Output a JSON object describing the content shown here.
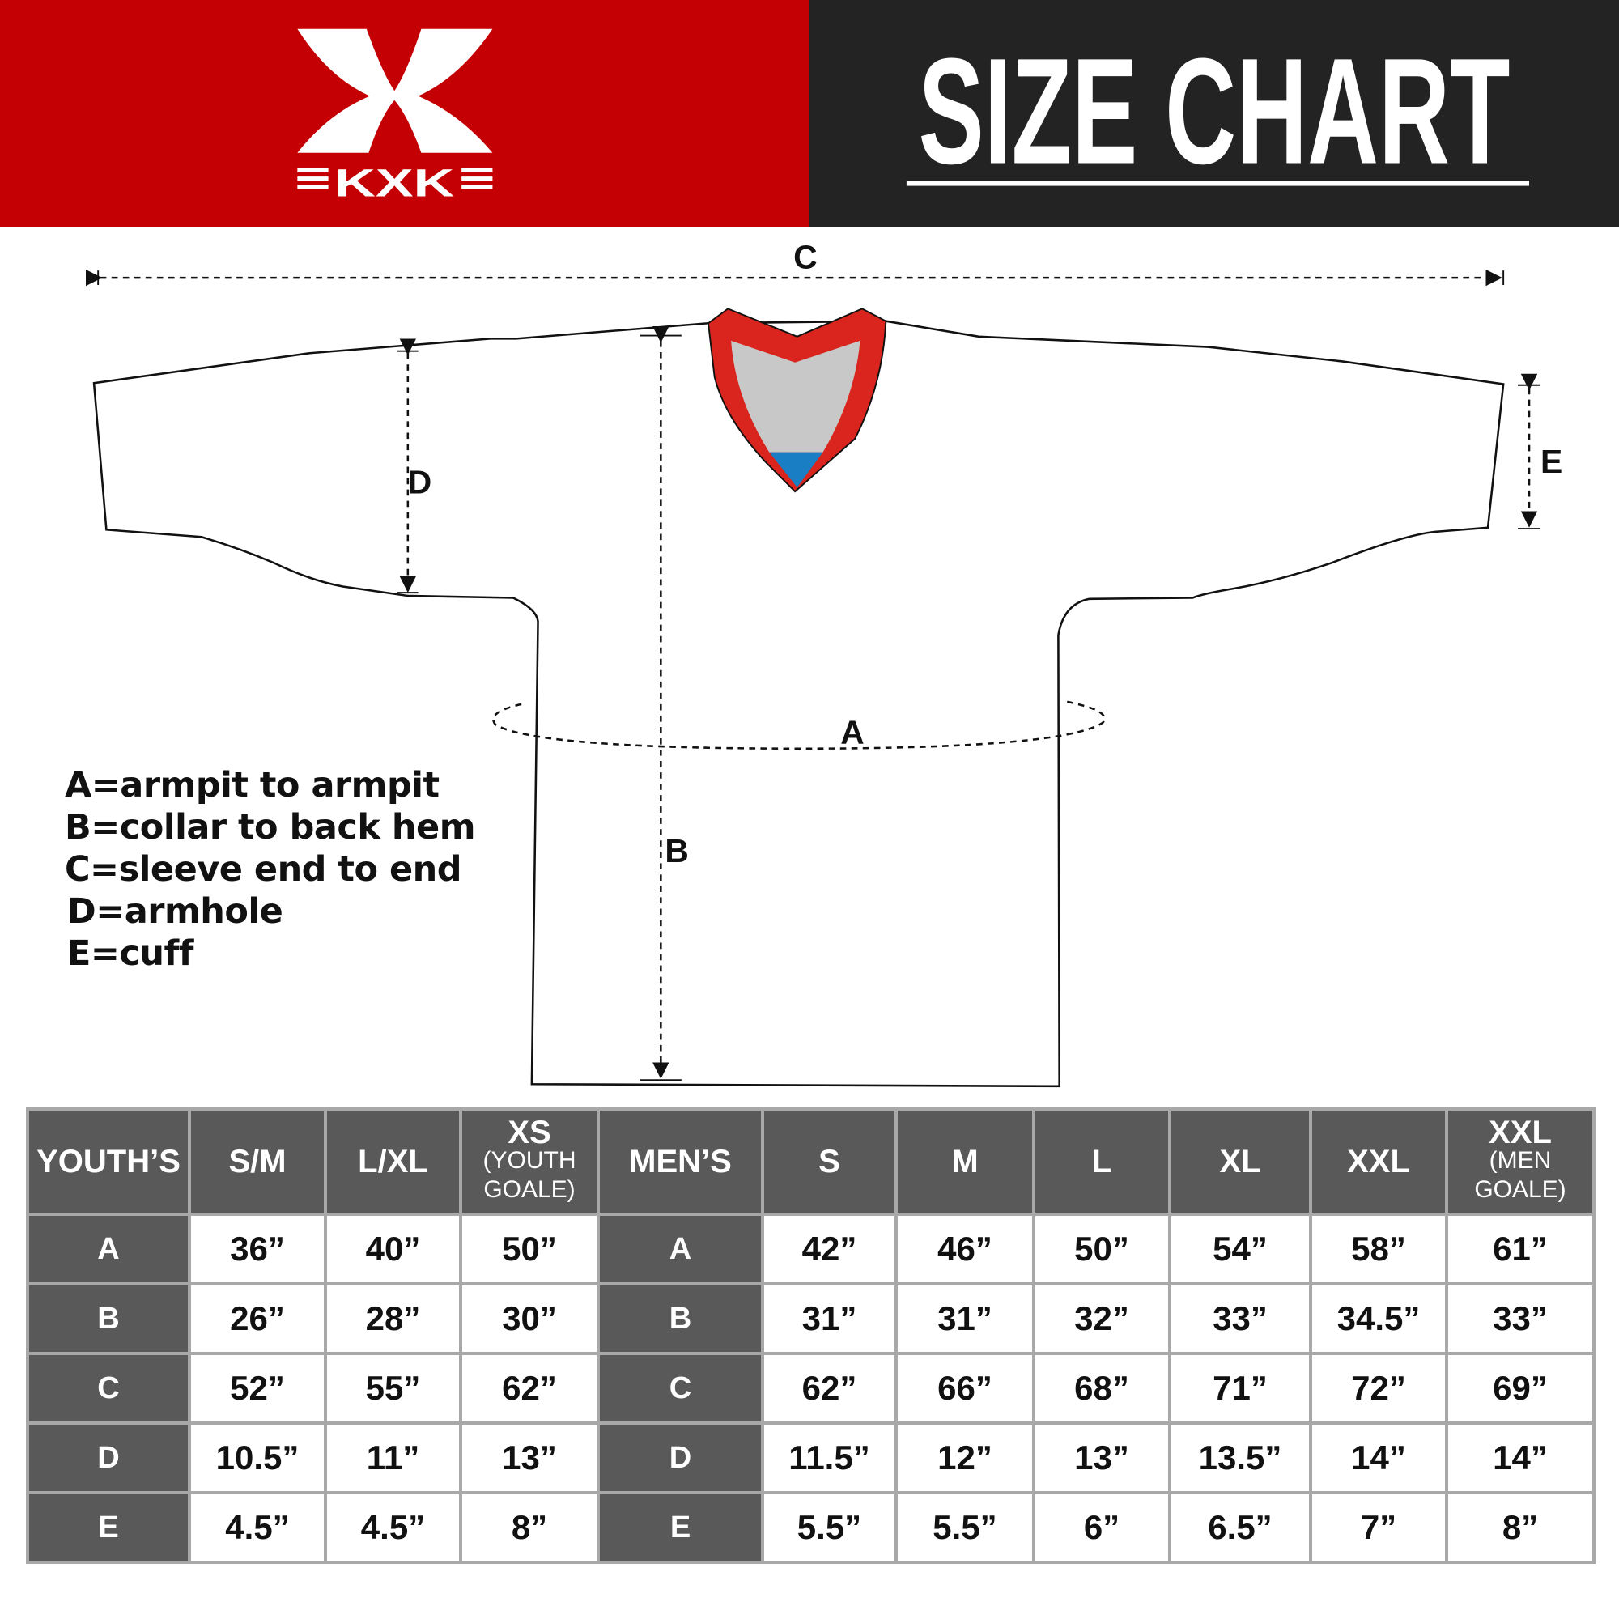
{
  "header": {
    "brand": "KXK",
    "title": "SIZE CHART",
    "colors": {
      "brand_red": "#c40005",
      "dark": "#232323",
      "table_header": "#595959",
      "collar_red": "#d9251d",
      "collar_gray": "#c8c8c8",
      "collar_blue": "#1a7ec4"
    }
  },
  "diagram": {
    "labels": {
      "a": "A",
      "b": "B",
      "c": "C",
      "d": "D",
      "e": "E"
    }
  },
  "legend": [
    "A=armpit to armpit",
    "B=collar to back hem",
    "C=sleeve end to end",
    "D=armhole",
    "E=cuff"
  ],
  "table": {
    "columns": [
      {
        "label": "YOUTH’S",
        "sub": ""
      },
      {
        "label": "S/M",
        "sub": ""
      },
      {
        "label": "L/XL",
        "sub": ""
      },
      {
        "label": "XS",
        "sub": "(YOUTH GOALE)"
      },
      {
        "label": "MEN’S",
        "sub": ""
      },
      {
        "label": "S",
        "sub": ""
      },
      {
        "label": "M",
        "sub": ""
      },
      {
        "label": "L",
        "sub": ""
      },
      {
        "label": "XL",
        "sub": ""
      },
      {
        "label": "XXL",
        "sub": ""
      },
      {
        "label": "XXL",
        "sub": "(MEN GOALE)"
      }
    ],
    "rows": [
      {
        "youth_label": "A",
        "youth": [
          "36”",
          "40”",
          "50”"
        ],
        "men_label": "A",
        "men": [
          "42”",
          "46”",
          "50”",
          "54”",
          "58”",
          "61”"
        ]
      },
      {
        "youth_label": "B",
        "youth": [
          "26”",
          "28”",
          "30”"
        ],
        "men_label": "B",
        "men": [
          "31”",
          "31”",
          "32”",
          "33”",
          "34.5”",
          "33”"
        ]
      },
      {
        "youth_label": "C",
        "youth": [
          "52”",
          "55”",
          "62”"
        ],
        "men_label": "C",
        "men": [
          "62”",
          "66”",
          "68”",
          "71”",
          "72”",
          "69”"
        ]
      },
      {
        "youth_label": "D",
        "youth": [
          "10.5”",
          "11”",
          "13”"
        ],
        "men_label": "D",
        "men": [
          "11.5”",
          "12”",
          "13”",
          "13.5”",
          "14”",
          "14”"
        ]
      },
      {
        "youth_label": "E",
        "youth": [
          "4.5”",
          "4.5”",
          "8”"
        ],
        "men_label": "E",
        "men": [
          "5.5”",
          "5.5”",
          "6”",
          "6.5”",
          "7”",
          "8”"
        ]
      }
    ]
  }
}
